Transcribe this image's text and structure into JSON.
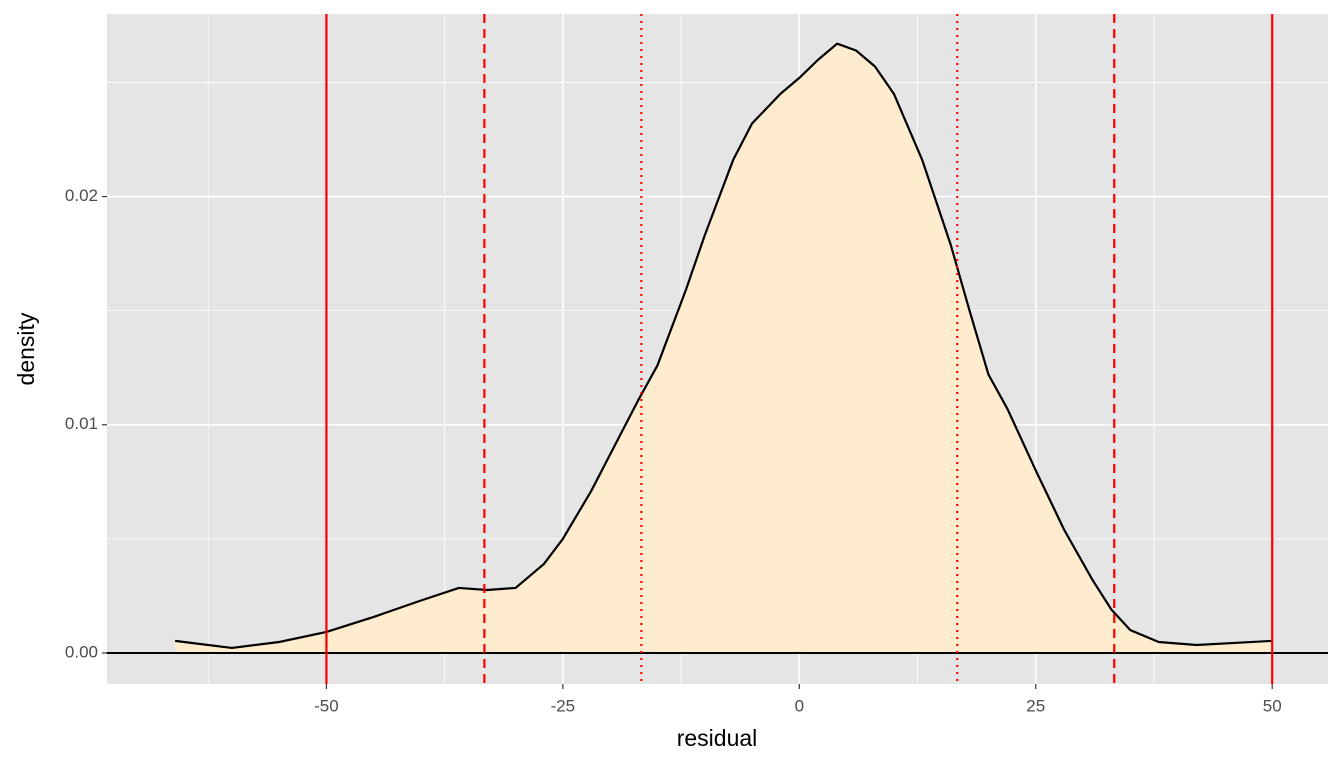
{
  "chart_data": {
    "type": "density",
    "x_label": "residual",
    "y_label": "density",
    "x": [
      -66,
      -60,
      -55,
      -50,
      -45,
      -40,
      -36,
      -33,
      -30,
      -27,
      -25,
      -22,
      -20,
      -17,
      -15,
      -12,
      -10,
      -7,
      -5,
      -2,
      0,
      2,
      4,
      6,
      8,
      10,
      13,
      16,
      18,
      20,
      22,
      25,
      28,
      31,
      33,
      35,
      38,
      42,
      46,
      50
    ],
    "values": [
      0.00053,
      0.00022,
      0.00048,
      0.00092,
      0.00158,
      0.0023,
      0.00285,
      0.00276,
      0.00285,
      0.0039,
      0.005,
      0.0071,
      0.0087,
      0.0111,
      0.0126,
      0.0159,
      0.0183,
      0.0216,
      0.0232,
      0.0245,
      0.0252,
      0.026,
      0.0267,
      0.0264,
      0.0257,
      0.0245,
      0.0216,
      0.0179,
      0.015,
      0.0122,
      0.0107,
      0.008,
      0.0054,
      0.0032,
      0.0019,
      0.001,
      0.00048,
      0.00035,
      0.00044,
      0.00053
    ],
    "fill": "#ffebcd",
    "line_color": "#000000",
    "xlim": [
      -73.2,
      55.9
    ],
    "ylim": [
      -0.00136,
      0.028
    ],
    "xticks": [
      -50,
      -25,
      0,
      25,
      50
    ],
    "yticks": [
      {
        "value": 0,
        "label": "0.00"
      },
      0.01,
      0.02
    ],
    "x_minor_ticks": [
      -62.5,
      -37.5,
      -12.5,
      12.5,
      37.5
    ],
    "y_minor_ticks": [
      0.005,
      0.015,
      0.025
    ],
    "grid": true,
    "hline": 0,
    "vlines_color": "#ff0000",
    "vlines": [
      {
        "x": -50,
        "linetype": "solid"
      },
      {
        "x": 50,
        "linetype": "solid"
      },
      {
        "x": -33.3,
        "linetype": "dashed"
      },
      {
        "x": 33.3,
        "linetype": "dashed"
      },
      {
        "x": -16.7,
        "linetype": "dotted"
      },
      {
        "x": 16.7,
        "linetype": "dotted"
      }
    ]
  }
}
